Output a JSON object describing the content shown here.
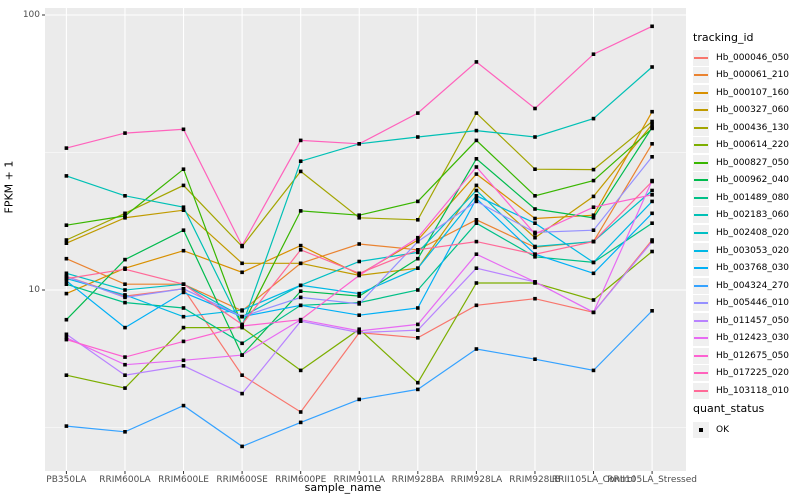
{
  "chart_data": {
    "type": "line",
    "title": "",
    "xlabel": "sample_name",
    "ylabel": "FPKM + 1",
    "y_scale": "log10",
    "ylim": [
      2.2,
      130
    ],
    "y_major_ticks": [
      10,
      100
    ],
    "y_minor_ticks": [
      3.162,
      31.62
    ],
    "grid": "on",
    "panel_bg": "#EBEBEB",
    "grid_color": "#FFFFFF",
    "point_marker": "black-square",
    "legend_position": "right",
    "categories": [
      "PB350LA",
      "RRIM600LA",
      "RRIM600LE",
      "RRIM600SE",
      "RRIM600PE",
      "RRIM901LA",
      "RRIM928BA",
      "RRIM928LA",
      "RRIM928LB",
      "RRII105LA_Control",
      "RRII105LA_Stressed"
    ],
    "series": [
      {
        "name": "Hb_000046_050",
        "color": "#F8766D",
        "values": [
          11.2,
          9.5,
          10.1,
          4.9,
          3.6,
          7.0,
          6.7,
          8.8,
          9.3,
          8.3,
          15.2
        ]
      },
      {
        "name": "Hb_000061_210",
        "color": "#EA8331",
        "values": [
          13.0,
          10.5,
          10.5,
          8.4,
          12.5,
          14.7,
          14.0,
          18.0,
          14.3,
          15.0,
          34.0
        ]
      },
      {
        "name": "Hb_000107_160",
        "color": "#D89000",
        "values": [
          9.7,
          12.0,
          13.9,
          11.6,
          14.5,
          11.4,
          15.2,
          26.4,
          18.2,
          18.7,
          44.5
        ]
      },
      {
        "name": "Hb_000327_060",
        "color": "#C09B00",
        "values": [
          14.8,
          18.3,
          19.5,
          12.5,
          12.5,
          11.3,
          12.0,
          24.0,
          15.5,
          21.9,
          40.0
        ]
      },
      {
        "name": "Hb_000436_130",
        "color": "#A3A500",
        "values": [
          15.2,
          19.0,
          24.0,
          14.4,
          27.0,
          18.3,
          18.0,
          44.0,
          27.5,
          27.4,
          41.0
        ]
      },
      {
        "name": "Hb_000614_220",
        "color": "#7CAE00",
        "values": [
          4.9,
          4.4,
          7.3,
          7.3,
          5.1,
          7.2,
          4.6,
          10.6,
          10.6,
          9.2,
          13.8
        ]
      },
      {
        "name": "Hb_000827_050",
        "color": "#39B600",
        "values": [
          17.2,
          18.6,
          27.5,
          7.4,
          19.4,
          18.7,
          21.0,
          35.0,
          22.0,
          25.0,
          38.7
        ]
      },
      {
        "name": "Hb_000962_040",
        "color": "#00BB4E",
        "values": [
          7.8,
          12.9,
          16.5,
          5.8,
          9.9,
          9.5,
          13.0,
          30.0,
          19.7,
          18.3,
          39.0
        ]
      },
      {
        "name": "Hb_001489_080",
        "color": "#00C087",
        "values": [
          10.5,
          9.0,
          8.6,
          6.4,
          8.8,
          9.0,
          10.0,
          17.5,
          13.2,
          12.6,
          17.5
        ]
      },
      {
        "name": "Hb_002183_060",
        "color": "#00C0B5",
        "values": [
          26.0,
          22.0,
          20.0,
          7.4,
          29.4,
          34.0,
          36.0,
          38.0,
          36.0,
          42.0,
          64.7
        ]
      },
      {
        "name": "Hb_002408_020",
        "color": "#00BFC4",
        "values": [
          11.5,
          10.0,
          10.5,
          8.0,
          10.4,
          12.7,
          13.7,
          23.0,
          14.4,
          15.0,
          23.0
        ]
      },
      {
        "name": "Hb_003053_020",
        "color": "#00B8E5",
        "values": [
          11.0,
          9.6,
          8.0,
          8.45,
          10.4,
          9.7,
          12.0,
          22.0,
          17.5,
          12.6,
          21.0
        ]
      },
      {
        "name": "Hb_003768_030",
        "color": "#00B0F6",
        "values": [
          10.8,
          7.3,
          9.8,
          8.0,
          8.8,
          8.1,
          8.6,
          21.5,
          13.5,
          11.5,
          19.0
        ]
      },
      {
        "name": "Hb_004324_270",
        "color": "#35A2FF",
        "values": [
          3.2,
          3.05,
          3.8,
          2.7,
          3.3,
          4.0,
          4.35,
          6.1,
          5.6,
          5.1,
          8.4
        ]
      },
      {
        "name": "Hb_005446_010",
        "color": "#9590FF",
        "values": [
          11.2,
          9.4,
          10.1,
          8.0,
          9.4,
          8.9,
          15.0,
          21.0,
          16.2,
          16.5,
          30.5
        ]
      },
      {
        "name": "Hb_011457_050",
        "color": "#B983FF",
        "values": [
          6.9,
          4.9,
          5.3,
          4.2,
          7.7,
          7.0,
          7.15,
          12.0,
          10.7,
          8.3,
          15.0
        ]
      },
      {
        "name": "Hb_012423_030",
        "color": "#E76BF3",
        "values": [
          6.7,
          5.35,
          5.55,
          5.8,
          7.8,
          7.1,
          7.5,
          13.5,
          10.7,
          8.3,
          25.0
        ]
      },
      {
        "name": "Hb_012675_050",
        "color": "#FD61D1",
        "values": [
          6.6,
          5.7,
          6.5,
          7.4,
          7.8,
          11.3,
          15.5,
          28.0,
          16.0,
          20.0,
          22.2
        ]
      },
      {
        "name": "Hb_017225_020",
        "color": "#FF62BC",
        "values": [
          32.8,
          37.2,
          38.4,
          14.5,
          35.0,
          34.0,
          44.0,
          67.5,
          45.7,
          72.0,
          91.0
        ]
      },
      {
        "name": "Hb_103118_010",
        "color": "#FF6A98",
        "values": [
          11.0,
          11.9,
          10.5,
          7.5,
          14.0,
          11.5,
          14.0,
          15.0,
          13.5,
          15.0,
          24.8
        ]
      }
    ]
  },
  "axes": {
    "y_title": "FPKM + 1",
    "x_title": "sample_name",
    "y_tick_labels": [
      "100",
      "10"
    ]
  },
  "legend": {
    "tracking_title": "tracking_id",
    "quant_title": "quant_status",
    "quant_items": [
      {
        "label": "OK",
        "marker": "black-square"
      }
    ]
  }
}
